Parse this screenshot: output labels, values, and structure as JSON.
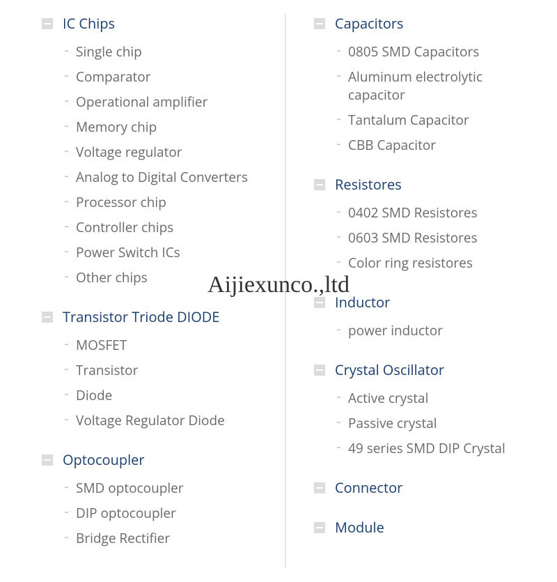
{
  "watermark": "Aijiexunco.,ltd",
  "colors": {
    "category_title": "#1a3e6e",
    "item_text": "#6a6a6a",
    "icon_bg": "#dcdcdc",
    "bullet": "#b8b8b8",
    "divider": "#e5e5e5",
    "background": "#ffffff"
  },
  "left_column": [
    {
      "title": "IC Chips",
      "items": [
        "Single chip",
        "Comparator",
        "Operational amplifier",
        "Memory chip",
        "Voltage regulator",
        "Analog to Digital Converters",
        "Processor chip",
        "Controller chips",
        "Power Switch ICs",
        "Other chips"
      ]
    },
    {
      "title": "Transistor Triode DIODE",
      "items": [
        "MOSFET",
        "Transistor",
        "Diode",
        "Voltage Regulator Diode"
      ]
    },
    {
      "title": "Optocoupler",
      "items": [
        "SMD optocoupler",
        "DIP optocoupler",
        "Bridge Rectifier"
      ]
    }
  ],
  "right_column": [
    {
      "title": "Capacitors",
      "items": [
        "0805 SMD Capacitors",
        "Aluminum electrolytic capacitor",
        "Tantalum Capacitor",
        "CBB Capacitor"
      ]
    },
    {
      "title": "Resistores",
      "items": [
        "0402 SMD Resistores",
        "0603 SMD Resistores",
        "Color ring resistores"
      ]
    },
    {
      "title": "Inductor",
      "items": [
        "power inductor"
      ]
    },
    {
      "title": "Crystal Oscillator",
      "items": [
        "Active crystal",
        "Passive crystal",
        "49 series SMD DIP Crystal"
      ]
    },
    {
      "title": "Connector",
      "items": []
    },
    {
      "title": "Module",
      "items": []
    }
  ]
}
